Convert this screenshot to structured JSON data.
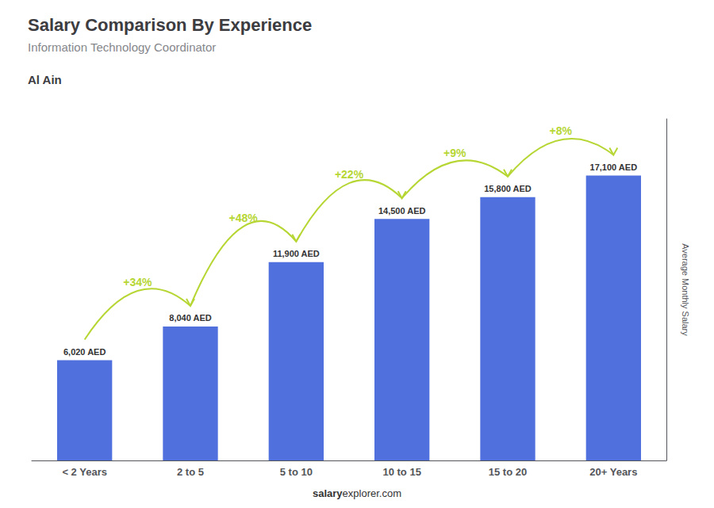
{
  "chart_data": {
    "type": "bar",
    "title": "Salary Comparison By Experience",
    "subtitle": "Information Technology Coordinator",
    "location": "Al Ain",
    "categories": [
      "< 2 Years",
      "2 to 5",
      "5 to 10",
      "10 to 15",
      "15 to 20",
      "20+ Years"
    ],
    "values": [
      6020,
      8040,
      11900,
      14500,
      15800,
      17100
    ],
    "value_labels": [
      "6,020 AED",
      "8,040 AED",
      "11,900 AED",
      "14,500 AED",
      "15,800 AED",
      "17,100 AED"
    ],
    "data_labels": true,
    "annotations": [
      "+34%",
      "+48%",
      "+22%",
      "+9%",
      "+8%"
    ],
    "ylabel": "Average Monthly Salary",
    "ylim": [
      0,
      20500
    ],
    "grid": false,
    "tick_labels": "x",
    "footer": [
      "salary",
      "explorer.com"
    ]
  }
}
